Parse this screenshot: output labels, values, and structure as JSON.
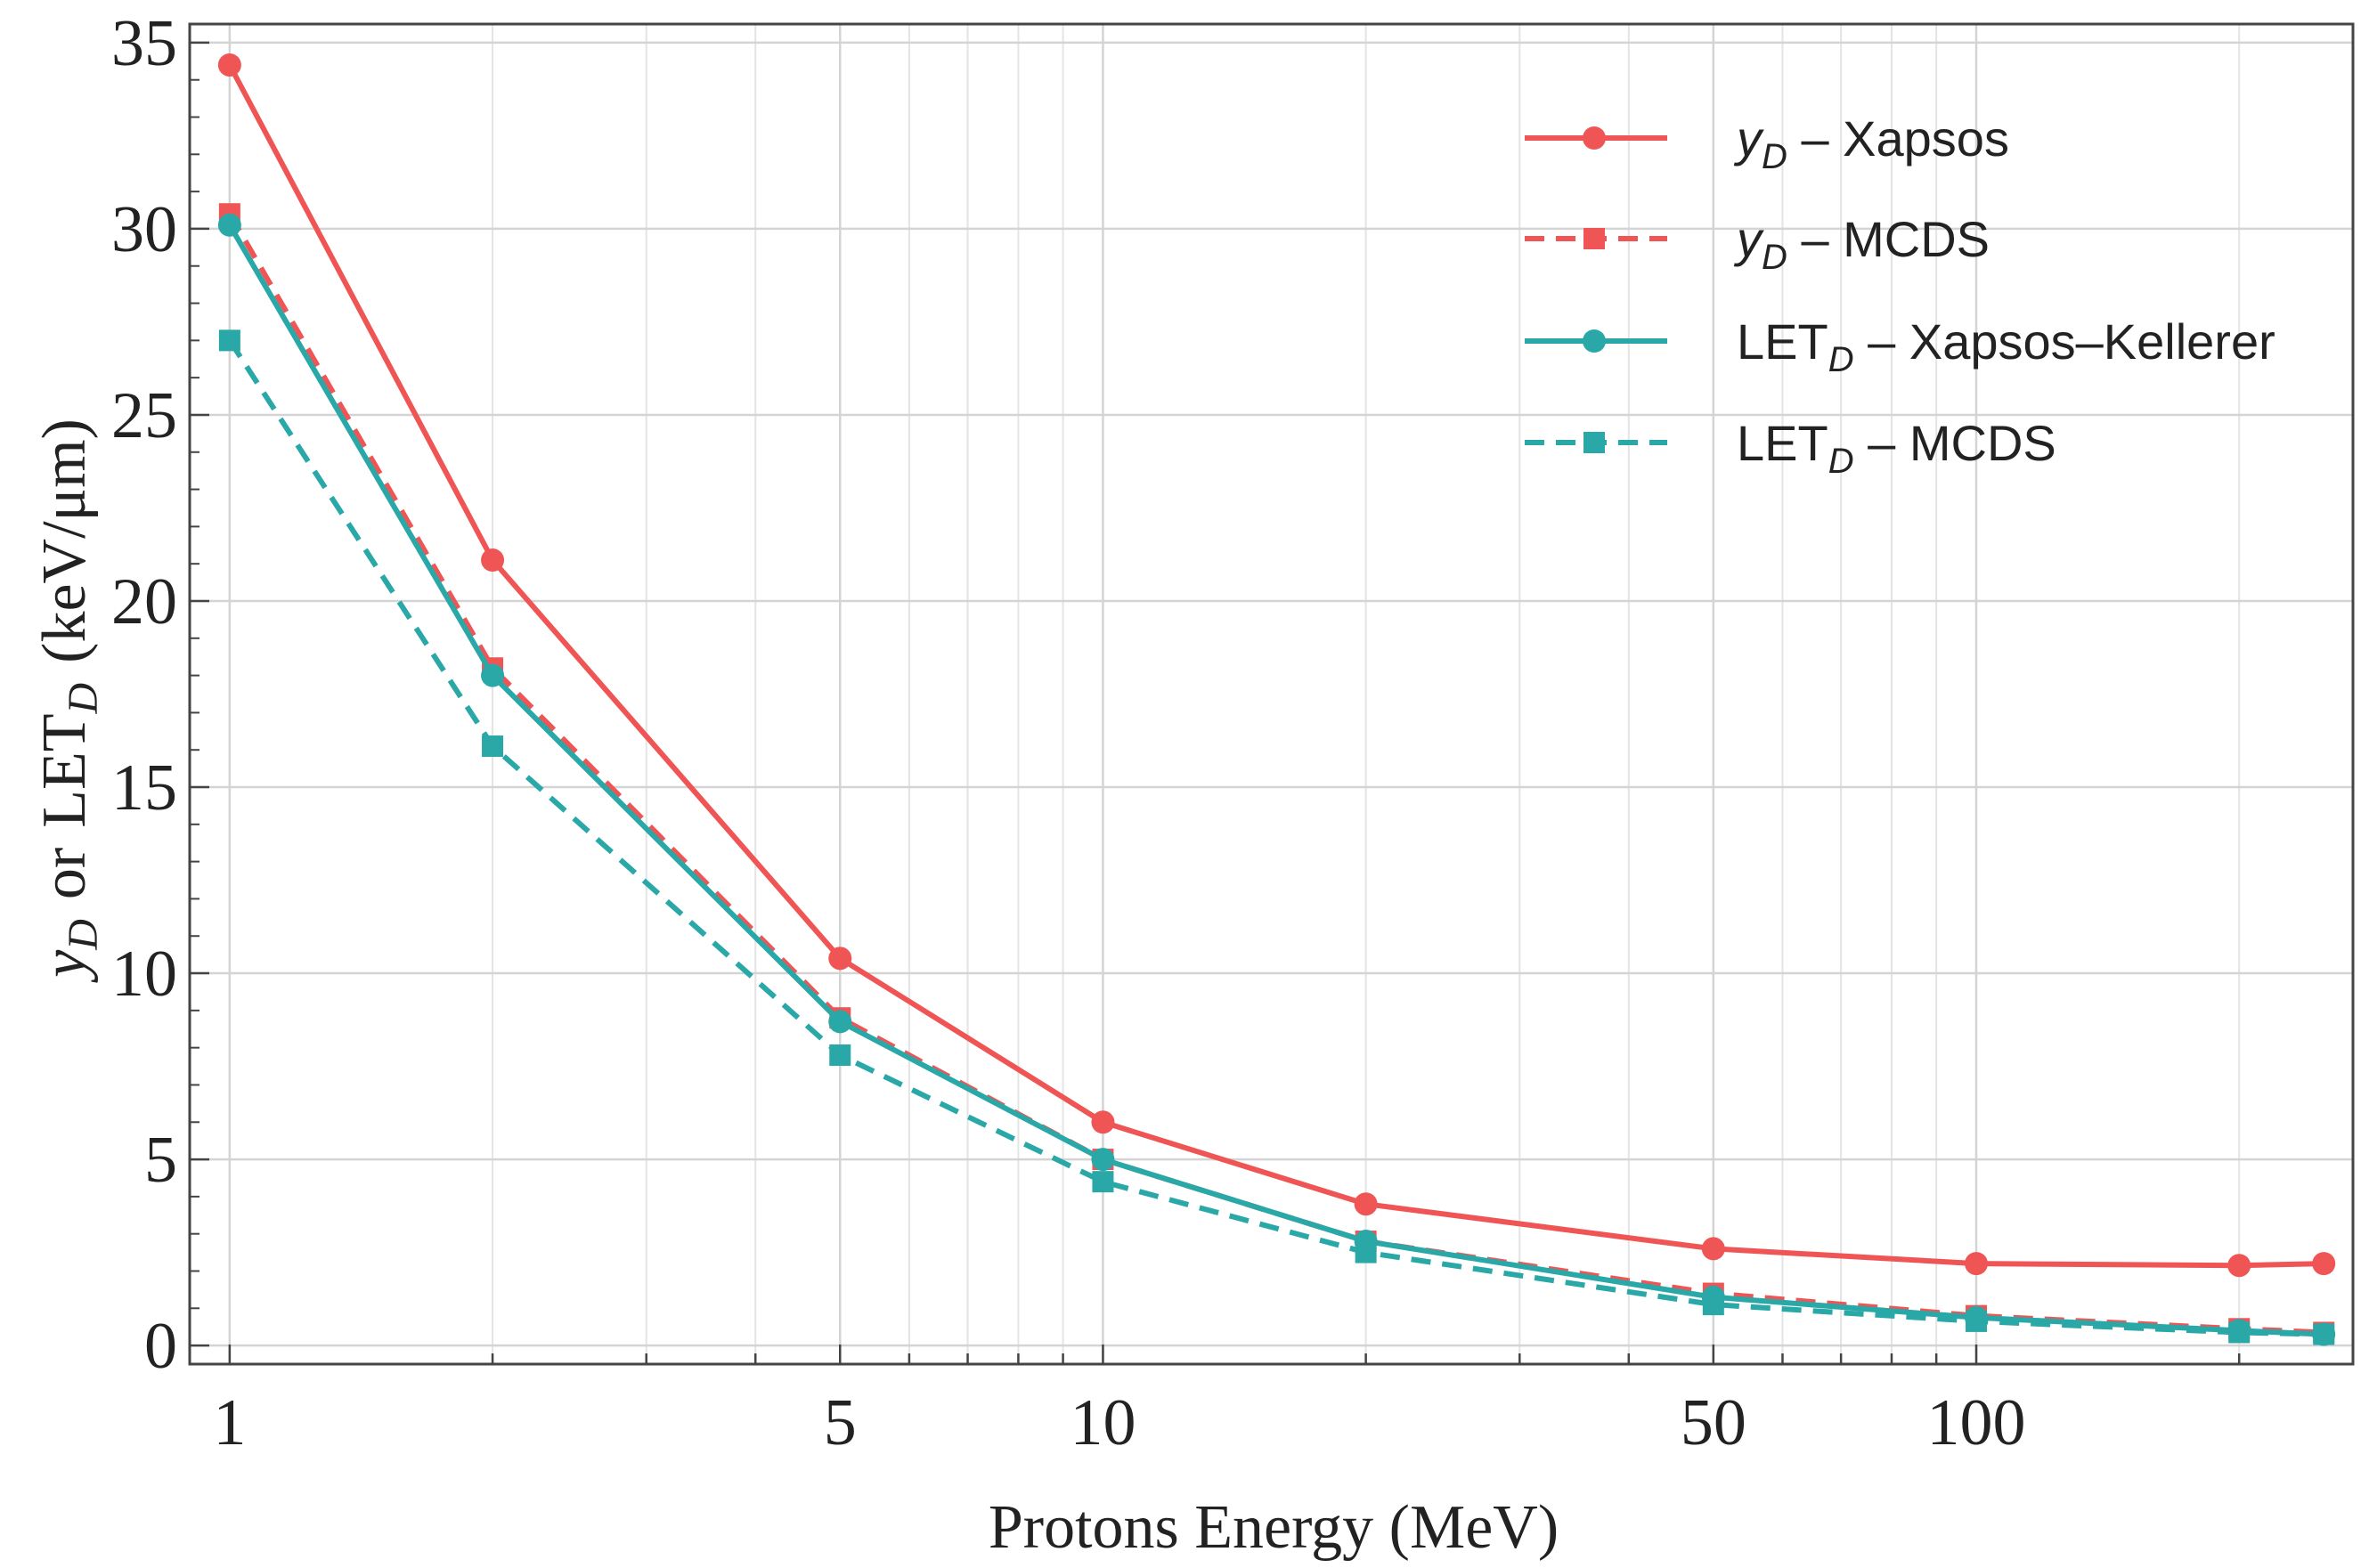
{
  "chart_data": {
    "type": "line",
    "title": "",
    "xlabel": "Protons Energy (MeV)",
    "ylabel": {
      "var": "y",
      "var_sub": "D",
      "connector": "or",
      "let": "LET",
      "let_sub": "D",
      "unit": "(keV/μm)"
    },
    "xscale": "log",
    "xlim": [
      0.9,
      270
    ],
    "ylim": [
      -0.5,
      35.5
    ],
    "x_ticks": [
      {
        "value": 1,
        "label": "1"
      },
      {
        "value": 5,
        "label": "5"
      },
      {
        "value": 10,
        "label": "10"
      },
      {
        "value": 50,
        "label": "50"
      },
      {
        "value": 100,
        "label": "100"
      }
    ],
    "y_ticks": [
      {
        "value": 0,
        "label": "0"
      },
      {
        "value": 5,
        "label": "5"
      },
      {
        "value": 10,
        "label": "10"
      },
      {
        "value": 15,
        "label": "15"
      },
      {
        "value": 20,
        "label": "20"
      },
      {
        "value": 25,
        "label": "25"
      },
      {
        "value": 30,
        "label": "30"
      },
      {
        "value": 35,
        "label": "35"
      }
    ],
    "grid": true,
    "legend_position": "top-right",
    "x": [
      1,
      2,
      5,
      10,
      20,
      50,
      100,
      200,
      250
    ],
    "series": [
      {
        "name": "yD – Xapsos",
        "label_main": "y",
        "label_sub": "D",
        "label_rest": " – Xapsos",
        "label_italic": true,
        "color": "#f05555",
        "dash": "solid",
        "marker": "circle",
        "values": [
          34.4,
          21.1,
          10.4,
          6.0,
          3.8,
          2.6,
          2.2,
          2.15,
          2.2
        ]
      },
      {
        "name": "yD – MCDS",
        "label_main": "y",
        "label_sub": "D",
        "label_rest": " – MCDS",
        "label_italic": true,
        "color": "#f05555",
        "dash": "dashed",
        "marker": "square",
        "values": [
          30.4,
          18.2,
          8.8,
          5.0,
          2.8,
          1.4,
          0.8,
          0.45,
          0.35
        ]
      },
      {
        "name": "LETD – Xapsos-Kellerer",
        "label_main": "LET",
        "label_sub": "D",
        "label_rest": " – Xapsos–Kellerer",
        "label_italic": false,
        "color": "#2aa8a8",
        "dash": "solid",
        "marker": "circle",
        "values": [
          30.1,
          18.0,
          8.7,
          5.0,
          2.8,
          1.3,
          0.75,
          0.4,
          0.3
        ]
      },
      {
        "name": "LETD – MCDS",
        "label_main": "LET",
        "label_sub": "D",
        "label_rest": " – MCDS",
        "label_italic": false,
        "color": "#2aa8a8",
        "dash": "dashed",
        "marker": "square",
        "values": [
          27.0,
          16.1,
          7.8,
          4.4,
          2.5,
          1.1,
          0.65,
          0.35,
          0.3
        ]
      }
    ]
  }
}
